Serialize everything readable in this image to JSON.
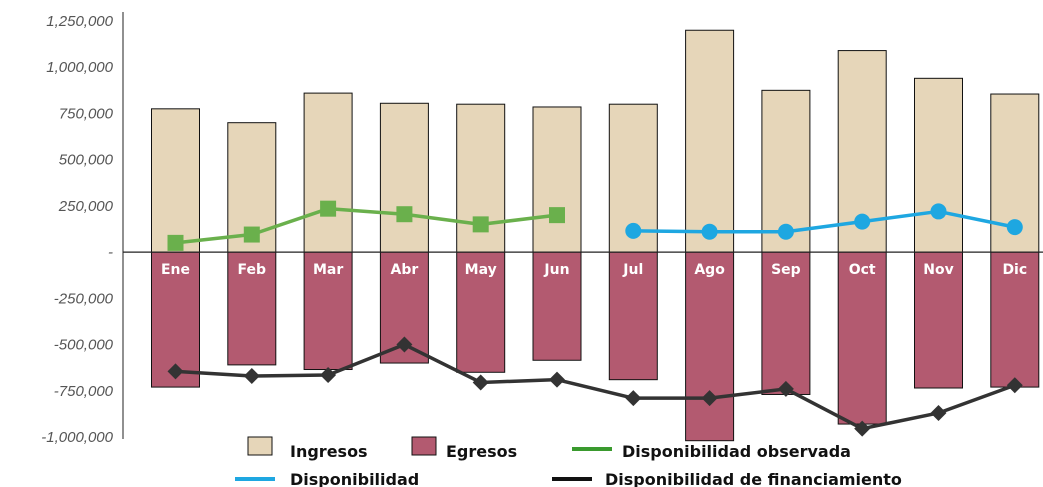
{
  "chart_data": {
    "type": "bar",
    "categories": [
      "Ene",
      "Feb",
      "Mar",
      "Abr",
      "May",
      "Jun",
      "Jul",
      "Ago",
      "Sep",
      "Oct",
      "Nov",
      "Dic"
    ],
    "yticks": [
      "1,250,000",
      "1,000,000",
      "750,000",
      "500,000",
      "250,000",
      "-",
      "-250,000",
      "-500,000",
      "-750,000",
      "-1,000,000"
    ],
    "ylim": [
      -1000000,
      1250000
    ],
    "grid": false,
    "legend_position": "bottom",
    "series": [
      {
        "name": "Ingresos",
        "kind": "bar",
        "color": "#e6d6b9",
        "values": [
          775000,
          700000,
          860000,
          805000,
          800000,
          785000,
          800000,
          1200000,
          875000,
          1090000,
          940000,
          855000
        ]
      },
      {
        "name": "Egresos",
        "kind": "bar",
        "color": "#b35a70",
        "values": [
          -730000,
          -610000,
          -635000,
          -600000,
          -650000,
          -585000,
          -690000,
          -1020000,
          -770000,
          -930000,
          -735000,
          -730000
        ]
      },
      {
        "name": "Disponibilidad observada",
        "kind": "line",
        "color": "#6ab04c",
        "marker": "square",
        "values": [
          50000,
          95000,
          235000,
          205000,
          150000,
          200000,
          null,
          null,
          null,
          null,
          null,
          null
        ]
      },
      {
        "name": "Disponibilidad",
        "kind": "line",
        "color": "#1ea7e1",
        "marker": "circle",
        "values": [
          null,
          null,
          null,
          null,
          null,
          null,
          115000,
          110000,
          110000,
          165000,
          220000,
          135000
        ]
      },
      {
        "name": "Disponibilidad de financiamiento",
        "kind": "line",
        "color": "#333333",
        "marker": "diamond",
        "values": [
          -645000,
          -670000,
          -665000,
          -500000,
          -705000,
          -690000,
          -790000,
          -790000,
          -740000,
          -955000,
          -870000,
          -720000
        ]
      }
    ],
    "legend": [
      {
        "label": "Ingresos",
        "swatch": "box",
        "color": "#e6d6b9"
      },
      {
        "label": "Egresos",
        "swatch": "box",
        "color": "#b35a70"
      },
      {
        "label": "Disponibilidad observada",
        "swatch": "line",
        "color": "#3a9a2e"
      },
      {
        "label": "Disponibilidad",
        "swatch": "line",
        "color": "#1ea7e1"
      },
      {
        "label": "Disponibilidad de financiamiento",
        "swatch": "line",
        "color": "#111111"
      }
    ]
  }
}
